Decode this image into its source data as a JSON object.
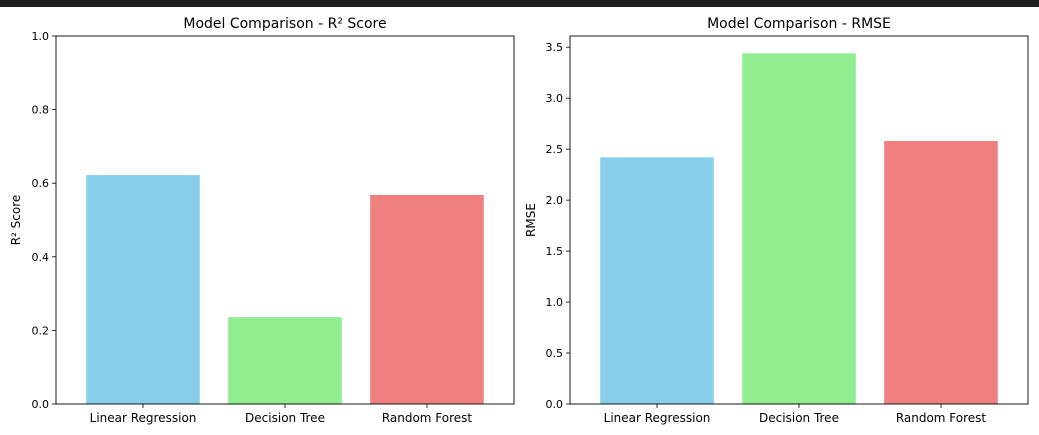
{
  "chart_data": [
    {
      "type": "bar",
      "title": "Model Comparison - R² Score",
      "xlabel": "",
      "ylabel": "R² Score",
      "categories": [
        "Linear Regression",
        "Decision Tree",
        "Random Forest"
      ],
      "values": [
        0.622,
        0.236,
        0.568
      ],
      "colors": [
        "#87ceeb",
        "#90ee90",
        "#f08080"
      ],
      "ylim": [
        0,
        1.0
      ],
      "yticks": [
        0.0,
        0.2,
        0.4,
        0.6,
        0.8,
        1.0
      ],
      "ytick_labels": [
        "0.0",
        "0.2",
        "0.4",
        "0.6",
        "0.8",
        "1.0"
      ],
      "grid": false
    },
    {
      "type": "bar",
      "title": "Model Comparison - RMSE",
      "xlabel": "",
      "ylabel": "RMSE",
      "categories": [
        "Linear Regression",
        "Decision Tree",
        "Random Forest"
      ],
      "values": [
        2.42,
        3.44,
        2.58
      ],
      "colors": [
        "#87ceeb",
        "#90ee90",
        "#f08080"
      ],
      "ylim": [
        0,
        3.61
      ],
      "yticks": [
        0.0,
        0.5,
        1.0,
        1.5,
        2.0,
        2.5,
        3.0,
        3.5
      ],
      "ytick_labels": [
        "0.0",
        "0.5",
        "1.0",
        "1.5",
        "2.0",
        "2.5",
        "3.0",
        "3.5"
      ],
      "grid": false
    }
  ]
}
